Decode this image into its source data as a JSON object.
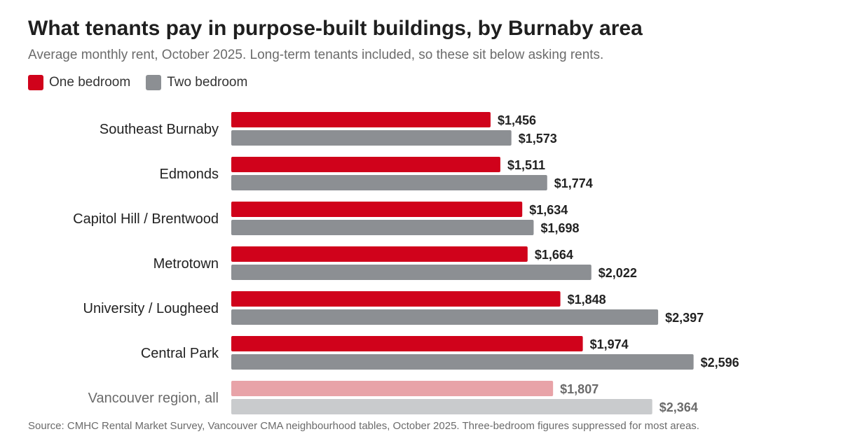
{
  "chart_data": {
    "type": "bar",
    "orientation": "horizontal",
    "title": "What tenants pay in purpose-built buildings, by Burnaby area",
    "subtitle": "Average monthly rent, October 2025. Long-term tenants included, so these sit below asking rents.",
    "source": "Source: CMHC Rental Market Survey, Vancouver CMA neighbourhood tables, October 2025. Three-bedroom figures suppressed for most areas.",
    "legend_position": "top-left",
    "grid": false,
    "value_prefix": "$",
    "xlim": [
      0,
      2700
    ],
    "categories": [
      "Southeast Burnaby",
      "Edmonds",
      "Capitol Hill / Brentwood",
      "Metrotown",
      "University / Lougheed",
      "Central Park",
      "Vancouver region, all"
    ],
    "highlight_category": "Vancouver region, all",
    "series": [
      {
        "name": "One bedroom",
        "color": "#d0021b",
        "muted_color": "#e8a3a8",
        "values": [
          1456,
          1511,
          1634,
          1664,
          1848,
          1974,
          1807
        ]
      },
      {
        "name": "Two bedroom",
        "color": "#8c8f93",
        "muted_color": "#c9cbcd",
        "values": [
          1573,
          1774,
          1698,
          2022,
          2397,
          2596,
          2364
        ]
      }
    ],
    "colors": {
      "label_dark": "#222222",
      "label_muted": "#6b6b6b"
    }
  }
}
